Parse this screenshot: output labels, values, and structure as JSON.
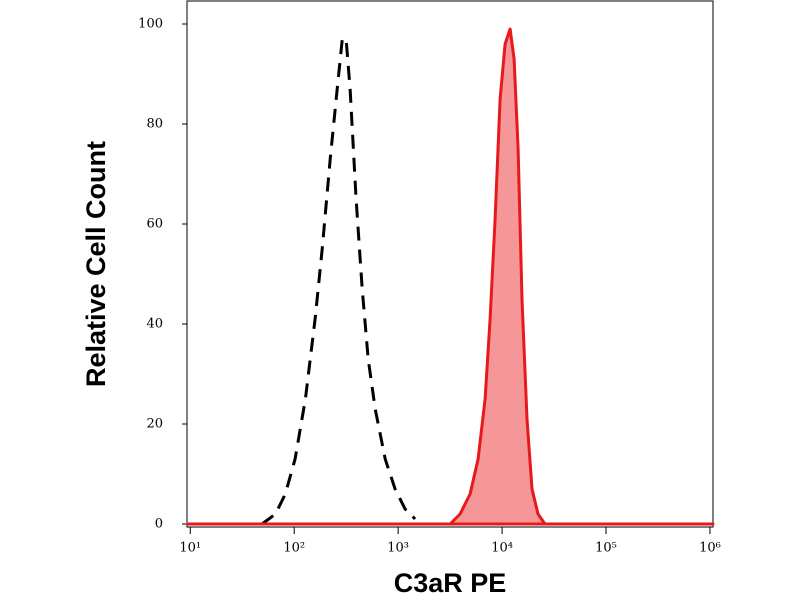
{
  "chart_data": {
    "type": "histogram-overlay",
    "x_label": "C3aR PE",
    "y_label": "Relative Cell Count",
    "xscale": "log",
    "xlim": [
      9.3,
      1070000
    ],
    "ylim": [
      0,
      100
    ],
    "xticks": [
      {
        "value": 10,
        "label": "10¹"
      },
      {
        "value": 100,
        "label": "10²"
      },
      {
        "value": 1000,
        "label": "10³"
      },
      {
        "value": 10000,
        "label": "10⁴"
      },
      {
        "value": 100000,
        "label": "10⁵"
      },
      {
        "value": 1000000,
        "label": "10⁶"
      }
    ],
    "yticks": [
      0,
      20,
      40,
      60,
      80,
      100
    ],
    "series": [
      {
        "color": "#000000",
        "dashed": true,
        "filled": false,
        "x": [
          49,
          66,
          82,
          102,
          128,
          159,
          186,
          222,
          259,
          290,
          316,
          345,
          394,
          451,
          515,
          601,
          750,
          935,
          1167,
          1456
        ],
        "values": [
          0,
          2,
          6,
          13,
          25,
          41,
          55,
          73,
          87,
          97,
          97,
          87,
          65,
          47,
          33,
          23,
          13,
          7,
          3,
          1
        ]
      },
      {
        "color": "#e8191b",
        "dashed": false,
        "filled": true,
        "x": [
          9.4,
          3162,
          3944,
          4920,
          5875,
          6870,
          7670,
          8570,
          9570,
          10690,
          11940,
          13040,
          14250,
          15560,
          17380,
          19410,
          22170,
          25890,
          1070000
        ],
        "values": [
          0,
          0,
          2,
          6,
          13,
          25,
          41,
          61,
          85,
          96,
          99,
          93,
          75,
          45,
          21,
          7,
          2,
          0,
          0
        ]
      }
    ]
  }
}
